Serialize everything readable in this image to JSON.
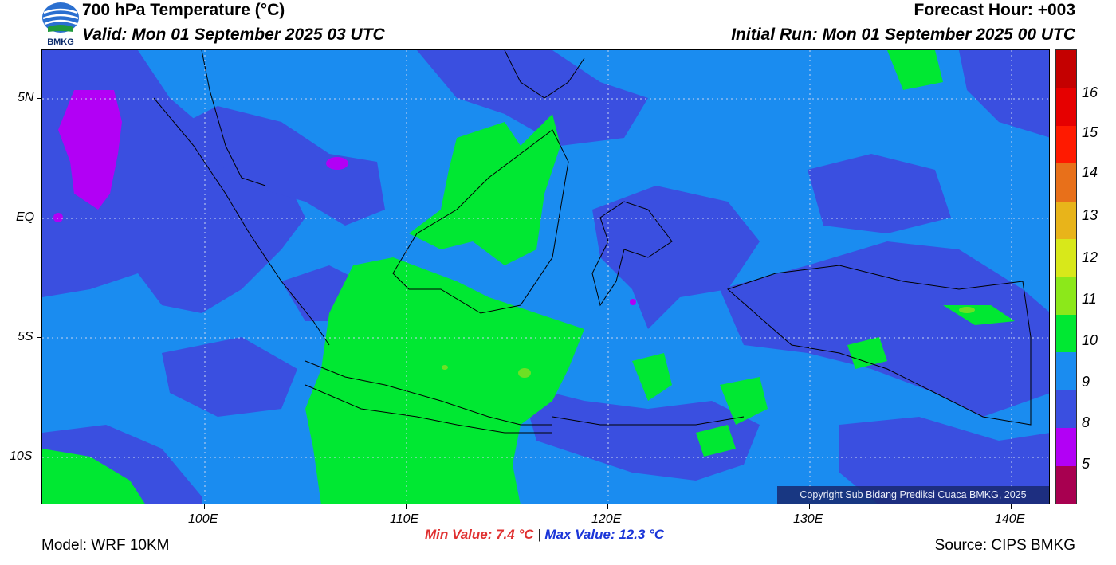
{
  "header": {
    "title": "700 hPa Temperature (°C)",
    "valid": "Valid: Mon 01 September 2025 03 UTC",
    "forecast_hour": "Forecast Hour: +003",
    "initial_run": "Initial Run: Mon 01 September 2025 00 UTC"
  },
  "logo": {
    "text": "BMKG",
    "icon": "bmkg-logo"
  },
  "map": {
    "copyright": "Copyright Sub Bidang Prediksi Cuaca BMKG, 2025",
    "lat_labels": [
      "5N",
      "EQ",
      "5S",
      "10S"
    ],
    "lon_labels": [
      "100E",
      "110E",
      "120E",
      "130E",
      "140E"
    ],
    "colors": {
      "c8": "#3a4fe0",
      "c9": "#1a8cf0",
      "c10": "#00e832",
      "c5": "#b200f5",
      "c11": "#6ee024"
    }
  },
  "colorbar": {
    "labels": [
      "16",
      "15",
      "14",
      "13",
      "12",
      "11",
      "10",
      "9",
      "8",
      "5"
    ],
    "segments": [
      "#c40000",
      "#e60000",
      "#ff1a00",
      "#e8701a",
      "#e8b41a",
      "#d8e81a",
      "#8ce81a",
      "#00e832",
      "#1a8cf0",
      "#3a4fe0",
      "#b200f5",
      "#a80050"
    ]
  },
  "stats": {
    "min": "Min Value: 7.4 °C",
    "separator": "|",
    "max": "Max Value: 12.3 °C"
  },
  "footer": {
    "model": "Model: WRF 10KM",
    "source": "Source: CIPS BMKG"
  }
}
